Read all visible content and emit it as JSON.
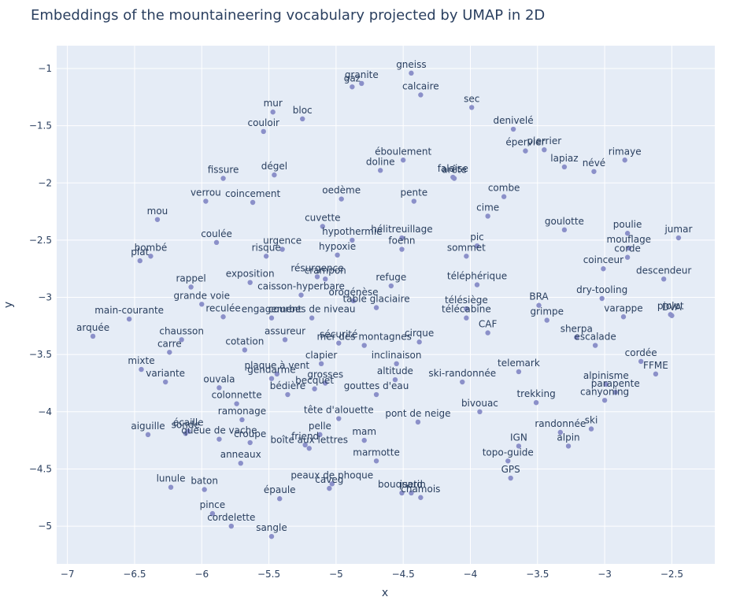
{
  "chart_data": {
    "type": "scatter",
    "title": "Embeddings of the mountaineering vocabulary projected by UMAP in 2D",
    "xlabel": "x",
    "ylabel": "y",
    "xlim": [
      -7.08,
      -2.18
    ],
    "ylim": [
      -5.33,
      -0.8
    ],
    "xticks": [
      -7,
      -6.5,
      -6,
      -5.5,
      -5,
      -4.5,
      -4,
      -3.5,
      -3,
      -2.5
    ],
    "xtick_labels": [
      "−7",
      "−6.5",
      "−6",
      "−5.5",
      "−5",
      "−4.5",
      "−4",
      "−3.5",
      "−3",
      "−2.5"
    ],
    "yticks": [
      -1,
      -1.5,
      -2,
      -2.5,
      -3,
      -3.5,
      -4,
      -4.5,
      -5
    ],
    "ytick_labels": [
      "−1",
      "−1.5",
      "−2",
      "−2.5",
      "−3",
      "−3.5",
      "−4",
      "−4.5",
      "−5"
    ],
    "grid": true,
    "colors": {
      "background": "#E5ECF6",
      "grid": "#FFFFFF",
      "marker": "#8B90C9",
      "text": "#2A3F5F"
    },
    "points": [
      {
        "label": "gneiss",
        "x": -4.44,
        "y": -1.04
      },
      {
        "label": "granite",
        "x": -4.81,
        "y": -1.13
      },
      {
        "label": "gaz",
        "x": -4.88,
        "y": -1.16
      },
      {
        "label": "calcaire",
        "x": -4.37,
        "y": -1.23
      },
      {
        "label": "sec",
        "x": -3.99,
        "y": -1.34
      },
      {
        "label": "mur",
        "x": -5.47,
        "y": -1.38
      },
      {
        "label": "bloc",
        "x": -5.25,
        "y": -1.44
      },
      {
        "label": "couloir",
        "x": -5.54,
        "y": -1.55
      },
      {
        "label": "denivelé",
        "x": -3.68,
        "y": -1.53
      },
      {
        "label": "épervier",
        "x": -3.59,
        "y": -1.72
      },
      {
        "label": "pierrier",
        "x": -3.45,
        "y": -1.71
      },
      {
        "label": "rimaye",
        "x": -2.85,
        "y": -1.8
      },
      {
        "label": "éboulement",
        "x": -4.5,
        "y": -1.8
      },
      {
        "label": "lapiaz",
        "x": -3.3,
        "y": -1.86
      },
      {
        "label": "névé",
        "x": -3.08,
        "y": -1.9
      },
      {
        "label": "doline",
        "x": -4.67,
        "y": -1.89
      },
      {
        "label": "falaise",
        "x": -4.13,
        "y": -1.95
      },
      {
        "label": "arête",
        "x": -4.12,
        "y": -1.96
      },
      {
        "label": "fissure",
        "x": -5.84,
        "y": -1.96
      },
      {
        "label": "dégel",
        "x": -5.46,
        "y": -1.93
      },
      {
        "label": "verrou",
        "x": -5.97,
        "y": -2.16
      },
      {
        "label": "coincement",
        "x": -5.62,
        "y": -2.17
      },
      {
        "label": "oedème",
        "x": -4.96,
        "y": -2.14
      },
      {
        "label": "pente",
        "x": -4.42,
        "y": -2.16
      },
      {
        "label": "combe",
        "x": -3.75,
        "y": -2.12
      },
      {
        "label": "cime",
        "x": -3.87,
        "y": -2.29
      },
      {
        "label": "mou",
        "x": -6.33,
        "y": -2.32
      },
      {
        "label": "goulotte",
        "x": -3.3,
        "y": -2.41
      },
      {
        "label": "poulie",
        "x": -2.83,
        "y": -2.44
      },
      {
        "label": "jumar",
        "x": -2.45,
        "y": -2.48
      },
      {
        "label": "cuvette",
        "x": -5.1,
        "y": -2.38
      },
      {
        "label": "hélitreuillage",
        "x": -4.51,
        "y": -2.48
      },
      {
        "label": "hypothermie",
        "x": -4.88,
        "y": -2.5
      },
      {
        "label": "coulée",
        "x": -5.89,
        "y": -2.52
      },
      {
        "label": "foehn",
        "x": -4.51,
        "y": -2.58
      },
      {
        "label": "pic",
        "x": -3.95,
        "y": -2.55
      },
      {
        "label": "mouflage",
        "x": -2.82,
        "y": -2.57
      },
      {
        "label": "bombé",
        "x": -6.38,
        "y": -2.64
      },
      {
        "label": "plat",
        "x": -6.46,
        "y": -2.68
      },
      {
        "label": "risque",
        "x": -5.52,
        "y": -2.64
      },
      {
        "label": "urgence",
        "x": -5.4,
        "y": -2.58
      },
      {
        "label": "hypoxie",
        "x": -4.99,
        "y": -2.63
      },
      {
        "label": "sommet",
        "x": -4.03,
        "y": -2.64
      },
      {
        "label": "corde",
        "x": -2.83,
        "y": -2.65
      },
      {
        "label": "coinceur",
        "x": -3.01,
        "y": -2.75
      },
      {
        "label": "descendeur",
        "x": -2.56,
        "y": -2.84
      },
      {
        "label": "crampon",
        "x": -5.08,
        "y": -2.84
      },
      {
        "label": "rappel",
        "x": -6.08,
        "y": -2.91
      },
      {
        "label": "exposition",
        "x": -5.64,
        "y": -2.87
      },
      {
        "label": "résurgence",
        "x": -5.14,
        "y": -2.82
      },
      {
        "label": "caisson-hyperbare",
        "x": -5.26,
        "y": -2.98
      },
      {
        "label": "orogénèse",
        "x": -4.87,
        "y": -3.03
      },
      {
        "label": "refuge",
        "x": -4.59,
        "y": -2.9
      },
      {
        "label": "téléphérique",
        "x": -3.95,
        "y": -2.89
      },
      {
        "label": "grande voie",
        "x": -6.0,
        "y": -3.06
      },
      {
        "label": "table glaciaire",
        "x": -4.7,
        "y": -3.09
      },
      {
        "label": "dry-tooling",
        "x": -3.02,
        "y": -3.01
      },
      {
        "label": "BRA",
        "x": -3.49,
        "y": -3.07
      },
      {
        "label": "télésiège",
        "x": -4.03,
        "y": -3.1
      },
      {
        "label": "main-courante",
        "x": -6.54,
        "y": -3.19
      },
      {
        "label": "reculée",
        "x": -5.84,
        "y": -3.17
      },
      {
        "label": "engagement",
        "x": -5.48,
        "y": -3.18
      },
      {
        "label": "courbes de niveau",
        "x": -5.18,
        "y": -3.18
      },
      {
        "label": "télécabine",
        "x": -4.03,
        "y": -3.18
      },
      {
        "label": "grimpe",
        "x": -3.43,
        "y": -3.2
      },
      {
        "label": "varappe",
        "x": -2.86,
        "y": -3.17
      },
      {
        "label": "piolet",
        "x": -2.51,
        "y": -3.15
      },
      {
        "label": "DVA",
        "x": -2.5,
        "y": -3.16
      },
      {
        "label": "CAF",
        "x": -3.87,
        "y": -3.31
      },
      {
        "label": "arquée",
        "x": -6.81,
        "y": -3.34
      },
      {
        "label": "chausson",
        "x": -6.15,
        "y": -3.37
      },
      {
        "label": "carre",
        "x": -6.24,
        "y": -3.48
      },
      {
        "label": "assureur",
        "x": -5.38,
        "y": -3.37
      },
      {
        "label": "sécurité",
        "x": -4.98,
        "y": -3.4
      },
      {
        "label": "mer des montagnes",
        "x": -4.79,
        "y": -3.42
      },
      {
        "label": "cirque",
        "x": -4.38,
        "y": -3.39
      },
      {
        "label": "sherpa",
        "x": -3.21,
        "y": -3.35
      },
      {
        "label": "escalade",
        "x": -3.07,
        "y": -3.42
      },
      {
        "label": "cotation",
        "x": -5.68,
        "y": -3.46
      },
      {
        "label": "clapier",
        "x": -5.11,
        "y": -3.58
      },
      {
        "label": "inclinaison",
        "x": -4.55,
        "y": -3.58
      },
      {
        "label": "cordée",
        "x": -2.73,
        "y": -3.56
      },
      {
        "label": "FFME",
        "x": -2.62,
        "y": -3.67
      },
      {
        "label": "mixte",
        "x": -6.45,
        "y": -3.63
      },
      {
        "label": "plaque à vent",
        "x": -5.44,
        "y": -3.67
      },
      {
        "label": "gendarme",
        "x": -5.48,
        "y": -3.71
      },
      {
        "label": "telemark",
        "x": -3.64,
        "y": -3.65
      },
      {
        "label": "variante",
        "x": -6.27,
        "y": -3.74
      },
      {
        "label": "grosses",
        "x": -5.08,
        "y": -3.75
      },
      {
        "label": "ski-randonnée",
        "x": -4.06,
        "y": -3.74
      },
      {
        "label": "altitude",
        "x": -4.56,
        "y": -3.72
      },
      {
        "label": "alpinisme",
        "x": -2.99,
        "y": -3.76
      },
      {
        "label": "ouvala",
        "x": -5.87,
        "y": -3.79
      },
      {
        "label": "bédière",
        "x": -5.36,
        "y": -3.85
      },
      {
        "label": "becquet",
        "x": -5.16,
        "y": -3.8
      },
      {
        "label": "gouttes d'eau",
        "x": -4.7,
        "y": -3.85
      },
      {
        "label": "parapente",
        "x": -2.92,
        "y": -3.83
      },
      {
        "label": "canyoning",
        "x": -3.0,
        "y": -3.9
      },
      {
        "label": "colonnette",
        "x": -5.74,
        "y": -3.93
      },
      {
        "label": "trekking",
        "x": -3.51,
        "y": -3.92
      },
      {
        "label": "bivouac",
        "x": -3.93,
        "y": -4.0
      },
      {
        "label": "ramonage",
        "x": -5.7,
        "y": -4.07
      },
      {
        "label": "tête d'alouette",
        "x": -4.98,
        "y": -4.06
      },
      {
        "label": "pont de neige",
        "x": -4.39,
        "y": -4.09
      },
      {
        "label": "écaille",
        "x": -6.1,
        "y": -4.17
      },
      {
        "label": "sonde",
        "x": -6.12,
        "y": -4.19
      },
      {
        "label": "queue de vache",
        "x": -5.87,
        "y": -4.24
      },
      {
        "label": "croupe",
        "x": -5.64,
        "y": -4.27
      },
      {
        "label": "randonnée",
        "x": -3.33,
        "y": -4.18
      },
      {
        "label": "ski",
        "x": -3.1,
        "y": -4.15
      },
      {
        "label": "aiguille",
        "x": -6.4,
        "y": -4.2
      },
      {
        "label": "pelle",
        "x": -5.12,
        "y": -4.2
      },
      {
        "label": "friend",
        "x": -5.23,
        "y": -4.29
      },
      {
        "label": "boîte aux lettres",
        "x": -5.2,
        "y": -4.32
      },
      {
        "label": "mam",
        "x": -4.79,
        "y": -4.25
      },
      {
        "label": "IGN",
        "x": -3.64,
        "y": -4.3
      },
      {
        "label": "alpin",
        "x": -3.27,
        "y": -4.3
      },
      {
        "label": "anneaux",
        "x": -5.71,
        "y": -4.45
      },
      {
        "label": "marmotte",
        "x": -4.7,
        "y": -4.43
      },
      {
        "label": "topo-guide",
        "x": -3.72,
        "y": -4.43
      },
      {
        "label": "GPS",
        "x": -3.7,
        "y": -4.58
      },
      {
        "label": "peaux de phoque",
        "x": -5.03,
        "y": -4.63
      },
      {
        "label": "caveg",
        "x": -5.05,
        "y": -4.67
      },
      {
        "label": "lunule",
        "x": -6.23,
        "y": -4.66
      },
      {
        "label": "baton",
        "x": -5.98,
        "y": -4.68
      },
      {
        "label": "bouquetin",
        "x": -4.51,
        "y": -4.71
      },
      {
        "label": "isard",
        "x": -4.44,
        "y": -4.71
      },
      {
        "label": "chamois",
        "x": -4.37,
        "y": -4.75
      },
      {
        "label": "épaule",
        "x": -5.42,
        "y": -4.76
      },
      {
        "label": "pince",
        "x": -5.92,
        "y": -4.89
      },
      {
        "label": "cordelette",
        "x": -5.78,
        "y": -5.0
      },
      {
        "label": "sangle",
        "x": -5.48,
        "y": -5.09
      }
    ]
  }
}
